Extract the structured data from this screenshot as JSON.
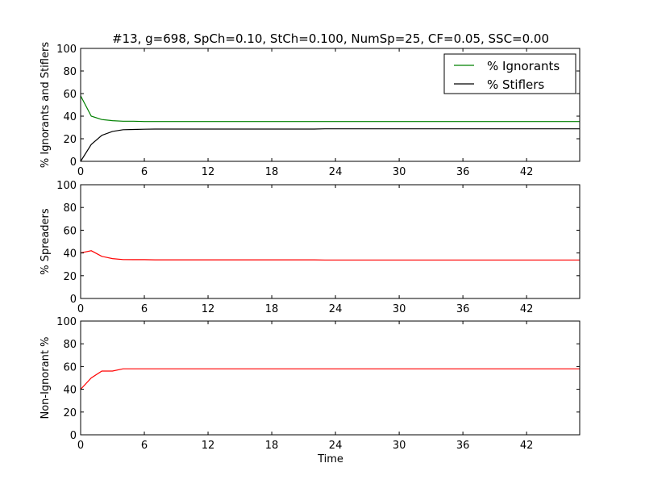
{
  "title": "#13, g=698, SpCh=0.10, StCh=0.100, NumSp=25, CF=0.05, SSC=0.00",
  "xlabel": "Time",
  "chart_data": [
    {
      "type": "line",
      "title": "#13, g=698, SpCh=0.10, StCh=0.100, NumSp=25, CF=0.05, SSC=0.00",
      "xlabel": "",
      "ylabel": "% Ignorants and Stiflers",
      "xlim": [
        0,
        47
      ],
      "ylim": [
        0,
        100
      ],
      "xticks": [
        0,
        6,
        12,
        18,
        24,
        30,
        36,
        42
      ],
      "yticks": [
        0,
        20,
        40,
        60,
        80,
        100
      ],
      "legend": "top-right",
      "series": [
        {
          "name": "% Ignorants",
          "color": "#008000",
          "x": [
            0,
            1,
            2,
            3,
            4,
            5,
            6,
            7,
            10,
            20,
            30,
            40,
            47
          ],
          "y": [
            58,
            40,
            37,
            36,
            35.5,
            35.5,
            35.2,
            35.2,
            35.2,
            35.2,
            35.2,
            35.2,
            35.2
          ]
        },
        {
          "name": "% Stiflers",
          "color": "#000000",
          "x": [
            0,
            1,
            2,
            3,
            4,
            5,
            6,
            7,
            10,
            20,
            22,
            23,
            30,
            40,
            47
          ],
          "y": [
            0,
            15,
            23,
            26.5,
            28,
            28.2,
            28.4,
            28.6,
            28.6,
            28.6,
            28.6,
            28.8,
            28.8,
            28.8,
            28.8
          ]
        }
      ]
    },
    {
      "type": "line",
      "title": "",
      "xlabel": "",
      "ylabel": "% Spreaders",
      "xlim": [
        0,
        47
      ],
      "ylim": [
        0,
        100
      ],
      "xticks": [
        0,
        6,
        12,
        18,
        24,
        30,
        36,
        42
      ],
      "yticks": [
        0,
        20,
        40,
        60,
        80,
        100
      ],
      "series": [
        {
          "name": "",
          "color": "#ff0000",
          "x": [
            0,
            1,
            2,
            3,
            4,
            5,
            6,
            7,
            10,
            20,
            22,
            23,
            30,
            40,
            47
          ],
          "y": [
            40,
            42,
            37,
            35,
            34.2,
            34.1,
            34.1,
            34,
            34,
            34,
            34,
            33.8,
            33.8,
            33.8,
            33.8
          ]
        }
      ]
    },
    {
      "type": "line",
      "title": "",
      "xlabel": "Time",
      "ylabel": "Non-Ignorant %",
      "xlim": [
        0,
        47
      ],
      "ylim": [
        0,
        100
      ],
      "xticks": [
        0,
        6,
        12,
        18,
        24,
        30,
        36,
        42
      ],
      "yticks": [
        0,
        20,
        40,
        60,
        80,
        100
      ],
      "series": [
        {
          "name": "",
          "color": "#ff0000",
          "x": [
            0,
            1,
            2,
            3,
            4,
            5,
            10,
            20,
            30,
            40,
            47
          ],
          "y": [
            40,
            50,
            56,
            56,
            58,
            58,
            58,
            58,
            58,
            58,
            58
          ]
        }
      ]
    }
  ]
}
